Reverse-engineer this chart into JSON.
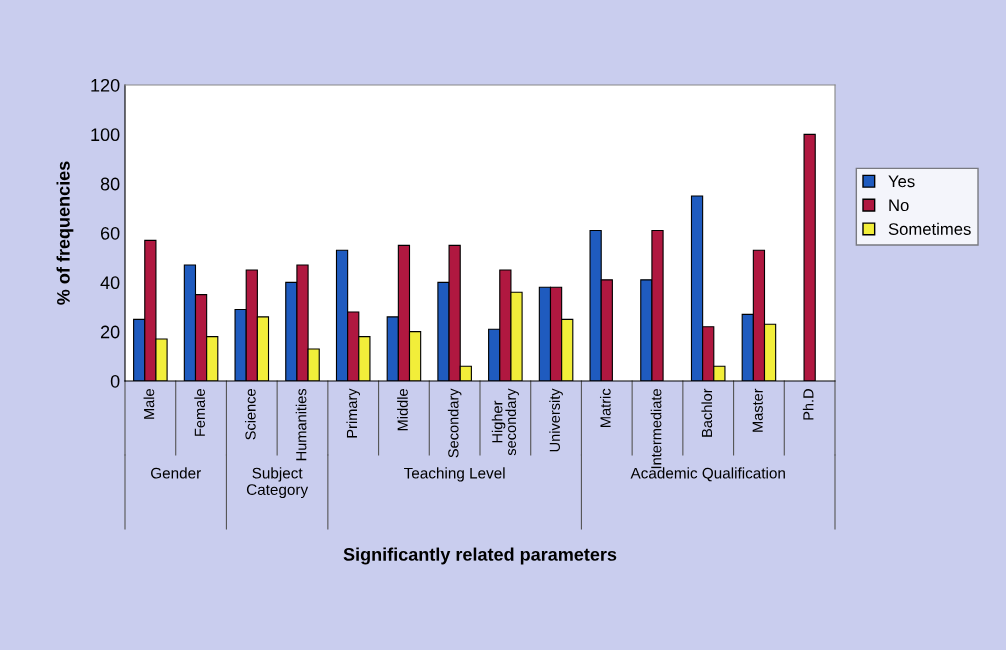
{
  "chart_data": {
    "type": "bar",
    "xlabel": "Significantly related parameters",
    "ylabel": "% of frequencies",
    "categories": [
      "Male",
      "Female",
      "Science",
      "Humanities",
      "Primary",
      "Middle",
      "Secondary",
      "Higher secondary",
      "University",
      "Matric",
      "Intermediate",
      "Bachlor",
      "Master",
      "Ph.D"
    ],
    "series": [
      {
        "name": "Yes",
        "color": "#1f5bbf",
        "values": [
          25,
          47,
          29,
          40,
          53,
          26,
          40,
          21,
          38,
          61,
          41,
          75,
          27,
          null
        ]
      },
      {
        "name": "No",
        "color": "#b01840",
        "values": [
          57,
          35,
          45,
          47,
          28,
          55,
          55,
          45,
          38,
          41,
          61,
          22,
          53,
          100
        ]
      },
      {
        "name": "Sometimes",
        "color": "#f2ee3a",
        "values": [
          17,
          18,
          26,
          13,
          18,
          20,
          6,
          36,
          25,
          null,
          null,
          6,
          23,
          null
        ]
      }
    ],
    "annotations": [
      "Gender",
      "Subject\nCategory",
      "Teaching Level",
      "Academic Qualification"
    ],
    "ylim": [
      0,
      120
    ],
    "yticks": [
      0,
      20,
      40,
      60,
      80,
      100,
      120
    ],
    "grid": false,
    "legend": "right"
  }
}
